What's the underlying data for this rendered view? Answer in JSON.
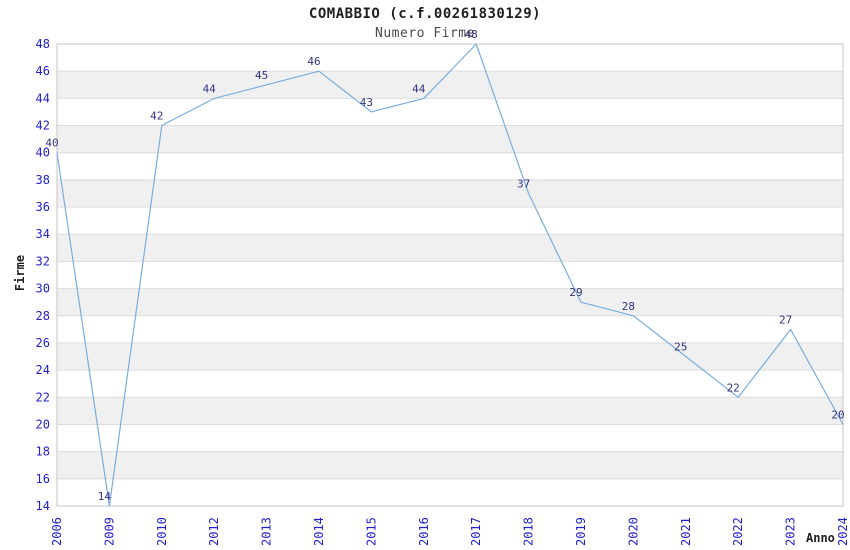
{
  "chart_data": {
    "type": "line",
    "title": "COMABBIO (c.f.00261830129)",
    "subtitle": "Numero Firme",
    "xlabel": "Anno",
    "ylabel": "Firme",
    "categories": [
      "2006",
      "2009",
      "2010",
      "2012",
      "2013",
      "2014",
      "2015",
      "2016",
      "2017",
      "2018",
      "2019",
      "2020",
      "2021",
      "2022",
      "2023",
      "2024"
    ],
    "values": [
      40,
      14,
      42,
      44,
      45,
      46,
      43,
      44,
      48,
      37,
      29,
      28,
      25,
      22,
      27,
      20
    ],
    "point_labels": [
      "40",
      "14",
      "42",
      "44",
      "45",
      "46",
      "43",
      "44",
      "48",
      "37",
      "29",
      "28",
      "25",
      "22",
      "27",
      "20"
    ],
    "ylim": [
      14,
      48
    ],
    "ytick_step": 2,
    "grid": "horizontal-only",
    "legend": "none",
    "markers": "none",
    "band_pattern": "alternating-starting-white-at-top",
    "colors": {
      "line": "#79aede",
      "tick_labels": "#2222cc",
      "point_labels": "#333380",
      "band": "#f0f0f0",
      "grid_line": "#dcdcdc",
      "plot_border": "#c6c6c6",
      "heading_text": "#1f1f1f",
      "background": "#ffffff"
    }
  }
}
